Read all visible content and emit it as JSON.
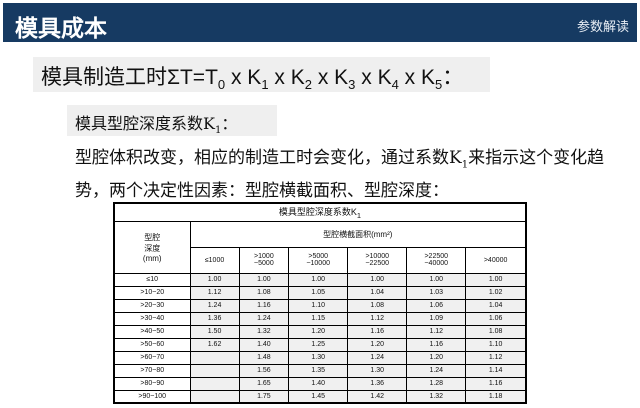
{
  "header": {
    "title": "模具成本",
    "section": "参数解读"
  },
  "formula": {
    "prefix": "模具制造工时ΣT=T",
    "t_sub": "0",
    "terms": [
      {
        "k": " x K",
        "s": "1"
      },
      {
        "k": " x K",
        "s": "2"
      },
      {
        "k": " x K",
        "s": "3"
      },
      {
        "k": " x K",
        "s": "4"
      },
      {
        "k": " x K",
        "s": "5"
      }
    ],
    "suffix": "："
  },
  "subtitle": {
    "text": "模具型腔深度系数K",
    "sub": "1",
    "suffix": "："
  },
  "paragraph": {
    "part1": "型腔体积改变，相应的制造工时会变化，通过系数K",
    "sub": "1",
    "part2": "来指示这个变化趋势，两个决定性因素：型腔横截面积、型腔深度："
  },
  "table": {
    "title": "模具型腔深度系数K",
    "title_sub": "1",
    "row_header": "型腔\n深度\n(mm)",
    "col_group": "型腔横截面积(mm²)",
    "columns": [
      "≤1000",
      ">1000\n~5000",
      ">5000\n~10000",
      ">10000\n~22500",
      ">22500\n~40000",
      ">40000"
    ],
    "rows": [
      {
        "depth": "≤10",
        "values": [
          "1.00",
          "1.00",
          "1.00",
          "1.00",
          "1.00",
          "1.00"
        ]
      },
      {
        "depth": ">10~20",
        "values": [
          "1.12",
          "1.08",
          "1.05",
          "1.04",
          "1.03",
          "1.02"
        ]
      },
      {
        "depth": ">20~30",
        "values": [
          "1.24",
          "1.16",
          "1.10",
          "1.08",
          "1.06",
          "1.04"
        ]
      },
      {
        "depth": ">30~40",
        "values": [
          "1.36",
          "1.24",
          "1.15",
          "1.12",
          "1.09",
          "1.06"
        ]
      },
      {
        "depth": ">40~50",
        "values": [
          "1.50",
          "1.32",
          "1.20",
          "1.16",
          "1.12",
          "1.08"
        ]
      },
      {
        "depth": ">50~60",
        "values": [
          "1.62",
          "1.40",
          "1.25",
          "1.20",
          "1.16",
          "1.10"
        ]
      },
      {
        "depth": ">60~70",
        "values": [
          "",
          "1.48",
          "1.30",
          "1.24",
          "1.20",
          "1.12"
        ]
      },
      {
        "depth": ">70~80",
        "values": [
          "",
          "1.56",
          "1.35",
          "1.30",
          "1.24",
          "1.14"
        ]
      },
      {
        "depth": ">80~90",
        "values": [
          "",
          "1.65",
          "1.40",
          "1.36",
          "1.28",
          "1.16"
        ]
      },
      {
        "depth": ">90~100",
        "values": [
          "",
          "1.75",
          "1.45",
          "1.42",
          "1.32",
          "1.18"
        ]
      }
    ]
  }
}
